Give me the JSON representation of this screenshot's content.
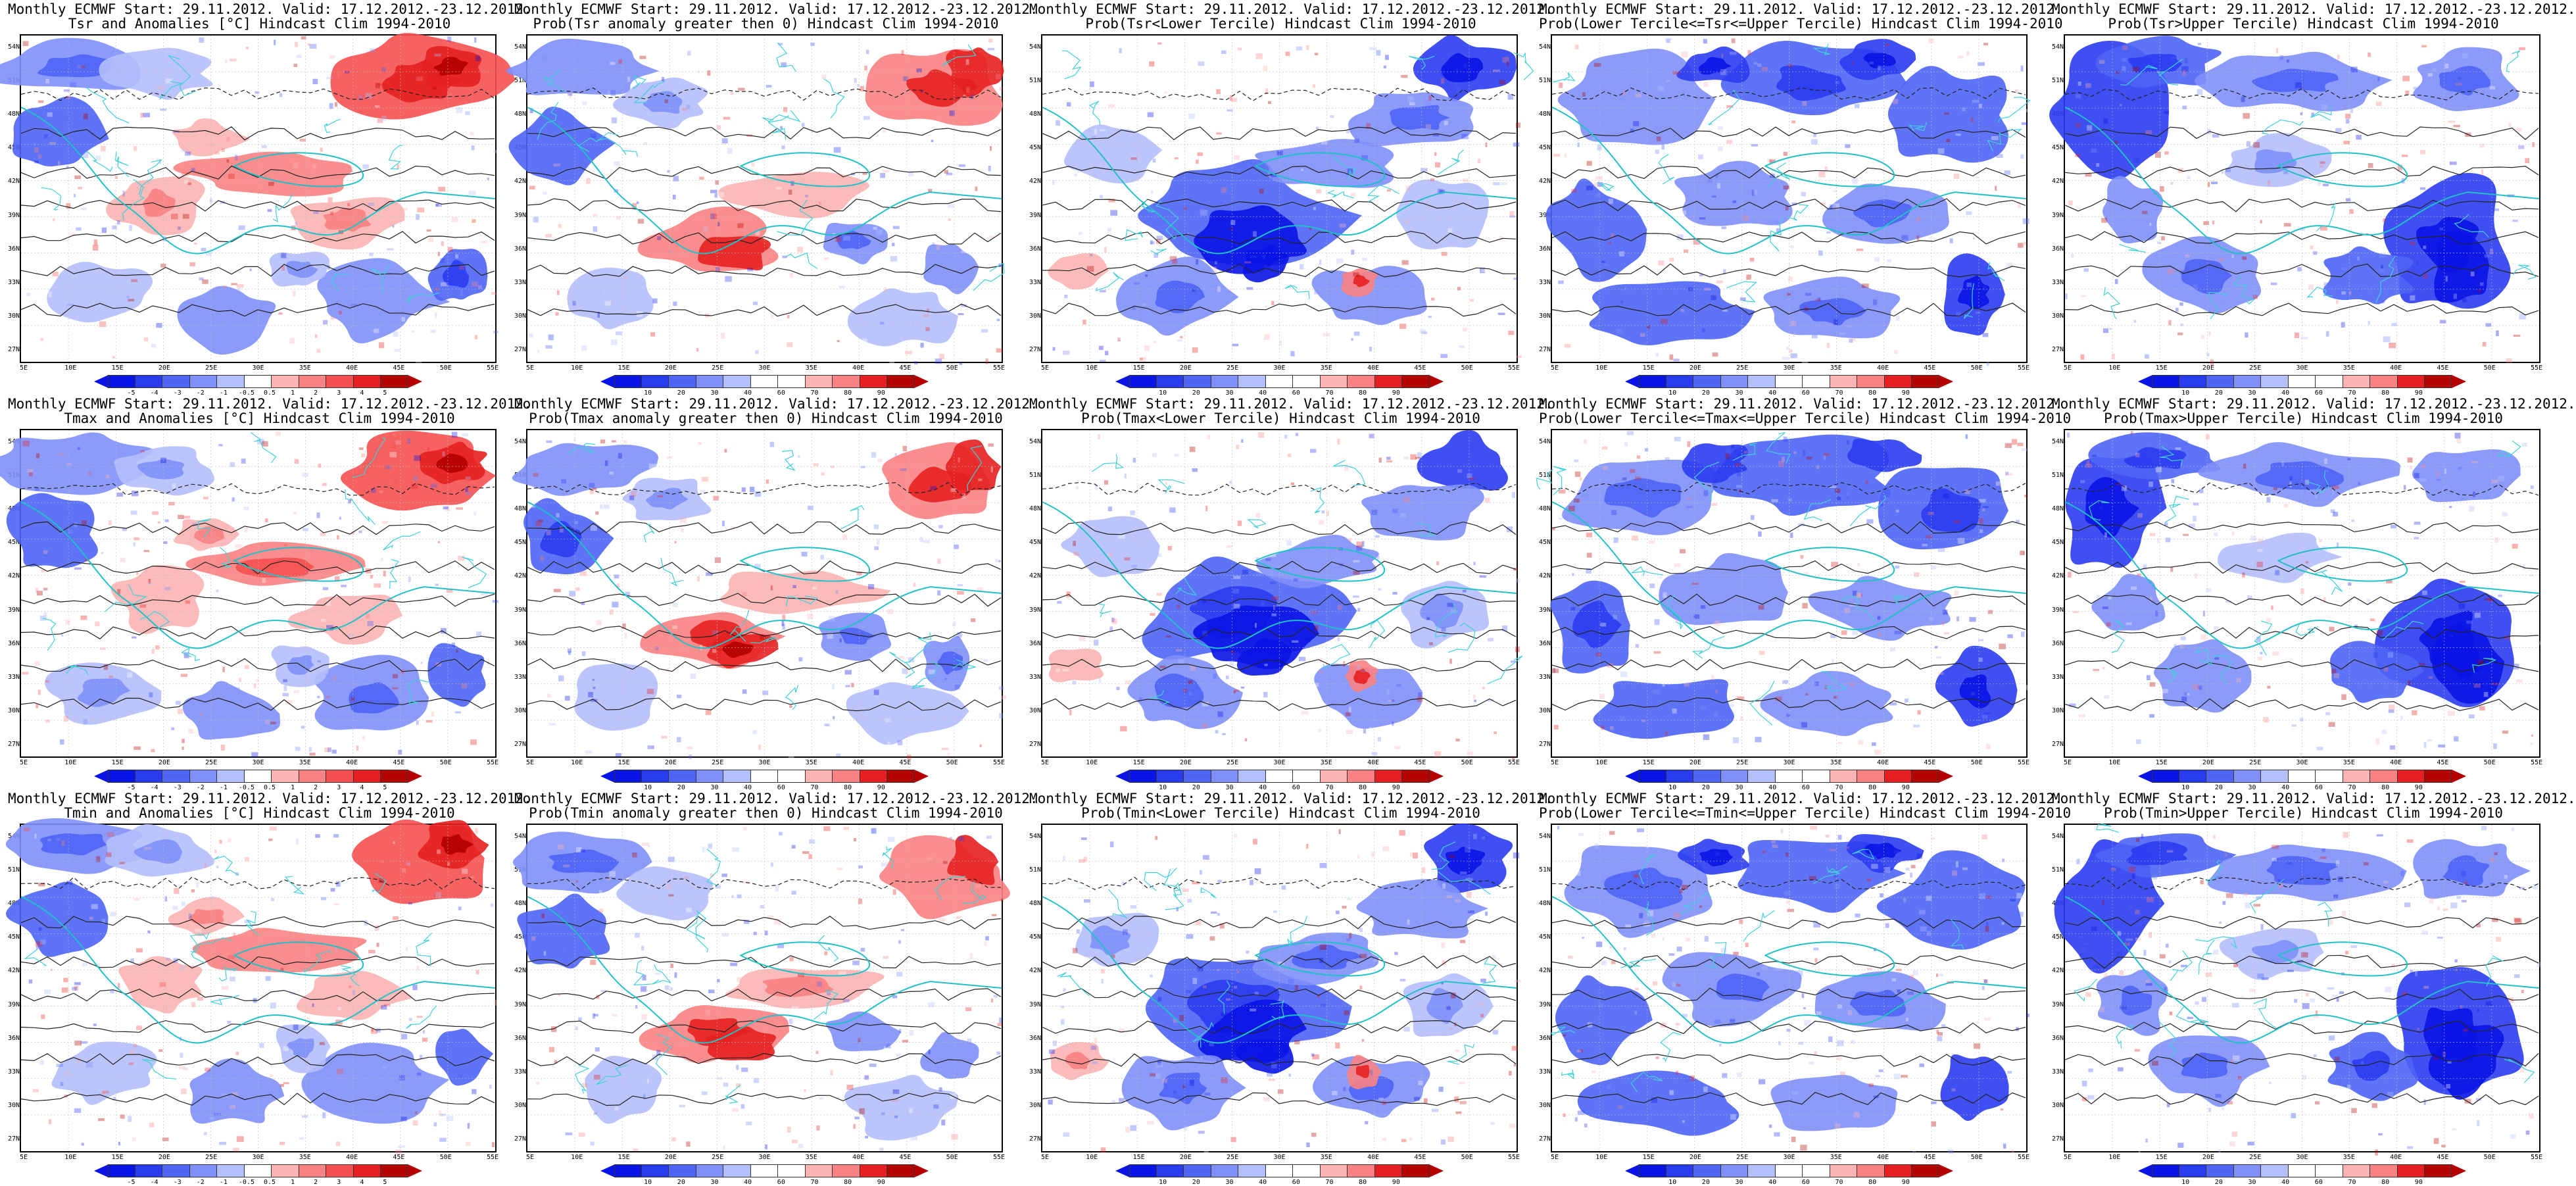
{
  "common": {
    "lat_labels": [
      "54N",
      "51N",
      "48N",
      "45N",
      "42N",
      "39N",
      "36N",
      "33N",
      "30N",
      "27N"
    ],
    "lon_labels": [
      "5E",
      "10E",
      "15E",
      "20E",
      "25E",
      "30E",
      "35E",
      "40E",
      "45E",
      "50E",
      "55E"
    ]
  },
  "scales": {
    "anom": {
      "colors": [
        "#0a14e6",
        "#2a3cf0",
        "#4e64f5",
        "#7f90fa",
        "#b4bffc",
        "#ffffff",
        "#fcb4b4",
        "#fa8282",
        "#f55050",
        "#e62020",
        "#b40000"
      ],
      "labels": [
        "-5",
        "-4",
        "-3",
        "-2",
        "-1",
        "-0.5",
        "0.5",
        "1",
        "2",
        "3",
        "4",
        "5"
      ]
    },
    "prob": {
      "colors": [
        "#0a14e6",
        "#2a3cf0",
        "#4e64f5",
        "#7f90fa",
        "#b4bffc",
        "#ffffff",
        "#ffffff",
        "#fcb4b4",
        "#fa8282",
        "#e62020",
        "#b40000"
      ],
      "labels": [
        "10",
        "20",
        "30",
        "40",
        "60",
        "70",
        "80",
        "90"
      ]
    }
  },
  "panels": [
    {
      "title1": "Monthly ECMWF Start: 29.11.2012. Valid: 17.12.2012.-23.12.2012.",
      "title2": "Tsr and Anomalies [°C] Hindcast Clim 1994-2010",
      "scale": "anom",
      "style": "anom",
      "var": "Tsr"
    },
    {
      "title1": "Monthly ECMWF Start: 29.11.2012. Valid: 17.12.2012.-23.12.2012.",
      "title2": "Prob(Tsr anomaly greater then 0) Hindcast Clim 1994-2010",
      "scale": "prob",
      "style": "pgt",
      "var": "Tsr"
    },
    {
      "title1": "Monthly ECMWF Start: 29.11.2012. Valid: 17.12.2012.-23.12.2012.",
      "title2": "Prob(Tsr<Lower Tercile) Hindcast Clim 1994-2010",
      "scale": "prob",
      "style": "lower",
      "var": "Tsr"
    },
    {
      "title1": "Monthly ECMWF Start: 29.11.2012. Valid: 17.12.2012.-23.12.2012.",
      "title2": "Prob(Lower Tercile<=Tsr<=Upper Tercile) Hindcast Clim 1994-2010",
      "scale": "prob",
      "style": "middle",
      "var": "Tsr"
    },
    {
      "title1": "Monthly ECMWF Start: 29.11.2012. Valid: 17.12.2012.-23.12.2012.",
      "title2": "Prob(Tsr>Upper Tercile) Hindcast Clim 1994-2010",
      "scale": "prob",
      "style": "upper",
      "var": "Tsr"
    },
    {
      "title1": "Monthly ECMWF Start: 29.11.2012. Valid: 17.12.2012.-23.12.2012.",
      "title2": "Tmax and Anomalies [°C] Hindcast Clim 1994-2010",
      "scale": "anom",
      "style": "anom",
      "var": "Tmax"
    },
    {
      "title1": "Monthly ECMWF Start: 29.11.2012. Valid: 17.12.2012.-23.12.2012.",
      "title2": "Prob(Tmax anomaly greater then 0) Hindcast Clim 1994-2010",
      "scale": "prob",
      "style": "pgt",
      "var": "Tmax"
    },
    {
      "title1": "Monthly ECMWF Start: 29.11.2012. Valid: 17.12.2012.-23.12.2012.",
      "title2": "Prob(Tmax<Lower Tercile) Hindcast Clim 1994-2010",
      "scale": "prob",
      "style": "lower",
      "var": "Tmax"
    },
    {
      "title1": "Monthly ECMWF Start: 29.11.2012. Valid: 17.12.2012.-23.12.2012.",
      "title2": "Prob(Lower Tercile<=Tmax<=Upper Tercile) Hindcast Clim 1994-2010",
      "scale": "prob",
      "style": "middle",
      "var": "Tmax"
    },
    {
      "title1": "Monthly ECMWF Start: 29.11.2012. Valid: 17.12.2012.-23.12.2012.",
      "title2": "Prob(Tmax>Upper Tercile) Hindcast Clim 1994-2010",
      "scale": "prob",
      "style": "upper",
      "var": "Tmax"
    },
    {
      "title1": "Monthly ECMWF Start: 29.11.2012. Valid: 17.12.2012.-23.12.2012.",
      "title2": "Tmin and Anomalies [°C] Hindcast Clim 1994-2010",
      "scale": "anom",
      "style": "anom",
      "var": "Tmin"
    },
    {
      "title1": "Monthly ECMWF Start: 29.11.2012. Valid: 17.12.2012.-23.12.2012.",
      "title2": "Prob(Tmin anomaly greater then 0) Hindcast Clim 1994-2010",
      "scale": "prob",
      "style": "pgt",
      "var": "Tmin"
    },
    {
      "title1": "Monthly ECMWF Start: 29.11.2012. Valid: 17.12.2012.-23.12.2012.",
      "title2": "Prob(Tmin<Lower Tercile) Hindcast Clim 1994-2010",
      "scale": "prob",
      "style": "lower",
      "var": "Tmin"
    },
    {
      "title1": "Monthly ECMWF Start: 29.11.2012. Valid: 17.12.2012.-23.12.2012.",
      "title2": "Prob(Lower Tercile<=Tmin<=Upper Tercile) Hindcast Clim 1994-2010",
      "scale": "prob",
      "style": "middle",
      "var": "Tmin"
    },
    {
      "title1": "Monthly ECMWF Start: 29.11.2012. Valid: 17.12.2012.-23.12.2012.",
      "title2": "Prob(Tmin>Upper Tercile) Hindcast Clim 1994-2010",
      "scale": "prob",
      "style": "upper",
      "var": "Tmin"
    }
  ]
}
